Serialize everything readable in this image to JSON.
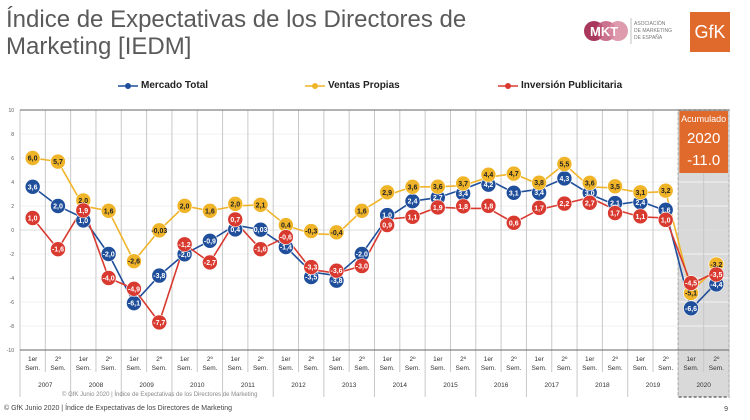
{
  "header": {
    "title": "Índice de Expectativas de los Directores de Marketing [IEDM]",
    "logo_mkt": "MKT ASOCIACIÓN DE MARKETING DE ESPAÑA",
    "logo_gfk": "GfK"
  },
  "colors": {
    "Mercado Total": "#1f4e9b",
    "Ventas Propias": "#f0b429",
    "Inversión Publicitaria": "#d93a30",
    "accent": "#e06a2c"
  },
  "highlight": {
    "label": "Acumulado",
    "year": "2020",
    "value": "-11.0"
  },
  "chart_data": {
    "type": "line",
    "ylim": [
      -10,
      10
    ],
    "yticks": [
      -10,
      -8,
      -6,
      -4,
      -2,
      0,
      2,
      4,
      6,
      8,
      10
    ],
    "grid": true,
    "legend": "top",
    "periods": [
      "1er Sem.",
      "2º Sem."
    ],
    "years": [
      "2007",
      "2008",
      "2009",
      "2010",
      "2011",
      "2012",
      "2013",
      "2014",
      "2015",
      "2016",
      "2017",
      "2018",
      "2019",
      "2020"
    ],
    "series": [
      {
        "name": "Mercado Total",
        "values": [
          3.6,
          2.0,
          1.0,
          -2.0,
          -6.1,
          -3.8,
          -2.0,
          -0.9,
          0.4,
          0.03,
          -1.4,
          -3.5,
          -3.8,
          -2.0,
          1.0,
          2.4,
          2.7,
          3.4,
          4.2,
          3.1,
          3.4,
          4.3,
          3.0,
          2.1,
          2.4,
          1.6,
          -6.6,
          -4.4
        ]
      },
      {
        "name": "Ventas Propias",
        "values": [
          6.0,
          5.7,
          2.0,
          1.6,
          -2.6,
          -0.03,
          2.0,
          1.6,
          2.0,
          2.1,
          0.4,
          -0.3,
          -0.4,
          1.6,
          2.9,
          3.6,
          3.6,
          3.7,
          4.4,
          4.7,
          3.8,
          5.5,
          3.6,
          3.5,
          3.1,
          3.2,
          -5.1,
          -3.2
        ]
      },
      {
        "name": "Inversión Publicitaria",
        "values": [
          1.0,
          -1.6,
          1.9,
          -4.0,
          -4.9,
          -7.7,
          -1.2,
          -2.7,
          0.7,
          -1.6,
          -0.6,
          -3.3,
          -3.6,
          -3.0,
          0.9,
          1.1,
          1.9,
          1.8,
          1.8,
          0.6,
          1.7,
          2.2,
          2.7,
          1.7,
          1.1,
          1.0,
          -4.5,
          -3.5
        ]
      }
    ]
  },
  "footer": {
    "source": "© GfK Junio 2020 | Índice de Expectativas de los Directores de Marketing",
    "page": "9"
  }
}
